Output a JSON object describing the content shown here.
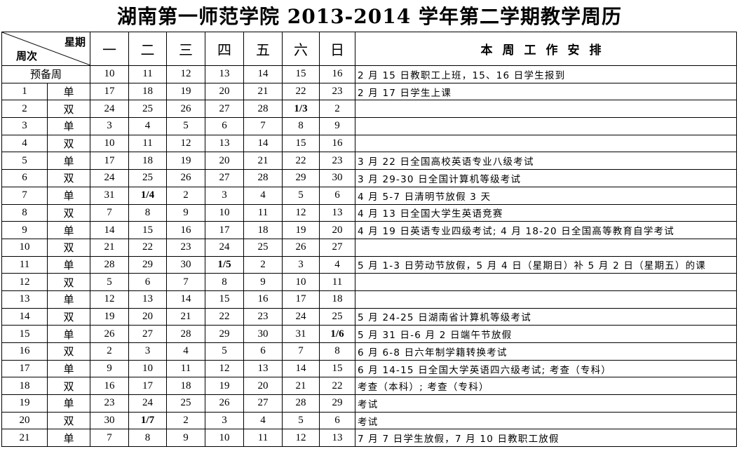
{
  "title": "湖南第一师范学院 2013-2014 学年第二学期教学周历",
  "header": {
    "weekday_label": "星期",
    "week_label": "周次",
    "days": [
      "一",
      "二",
      "三",
      "四",
      "五",
      "六",
      "日"
    ],
    "plan": "本周工作安排"
  },
  "rows": [
    {
      "week": "预备周",
      "parity": "",
      "dates": [
        "10",
        "11",
        "12",
        "13",
        "14",
        "15",
        "16"
      ],
      "note": "2 月 15 日教职工上班，15、16 日学生报到"
    },
    {
      "week": "1",
      "parity": "单",
      "dates": [
        "17",
        "18",
        "19",
        "20",
        "21",
        "22",
        "23"
      ],
      "note": "2 月 17 日学生上课"
    },
    {
      "week": "2",
      "parity": "双",
      "dates": [
        "24",
        "25",
        "26",
        "27",
        "28",
        "1/3",
        "2"
      ],
      "note": ""
    },
    {
      "week": "3",
      "parity": "单",
      "dates": [
        "3",
        "4",
        "5",
        "6",
        "7",
        "8",
        "9"
      ],
      "note": ""
    },
    {
      "week": "4",
      "parity": "双",
      "dates": [
        "10",
        "11",
        "12",
        "13",
        "14",
        "15",
        "16"
      ],
      "note": ""
    },
    {
      "week": "5",
      "parity": "单",
      "dates": [
        "17",
        "18",
        "19",
        "20",
        "21",
        "22",
        "23"
      ],
      "note": "3 月 22 日全国高校英语专业八级考试"
    },
    {
      "week": "6",
      "parity": "双",
      "dates": [
        "24",
        "25",
        "26",
        "27",
        "28",
        "29",
        "30"
      ],
      "note": "3 月 29-30 日全国计算机等级考试"
    },
    {
      "week": "7",
      "parity": "单",
      "dates": [
        "31",
        "1/4",
        "2",
        "3",
        "4",
        "5",
        "6"
      ],
      "note": "4 月 5-7 日清明节放假 3 天"
    },
    {
      "week": "8",
      "parity": "双",
      "dates": [
        "7",
        "8",
        "9",
        "10",
        "11",
        "12",
        "13"
      ],
      "note": "4 月 13 日全国大学生英语竞赛"
    },
    {
      "week": "9",
      "parity": "单",
      "dates": [
        "14",
        "15",
        "16",
        "17",
        "18",
        "19",
        "20"
      ],
      "note": "4 月 19 日英语专业四级考试; 4 月 18-20 日全国高等教育自学考试"
    },
    {
      "week": "10",
      "parity": "双",
      "dates": [
        "21",
        "22",
        "23",
        "24",
        "25",
        "26",
        "27"
      ],
      "note": ""
    },
    {
      "week": "11",
      "parity": "单",
      "dates": [
        "28",
        "29",
        "30",
        "1/5",
        "2",
        "3",
        "4"
      ],
      "note": "5 月 1-3 日劳动节放假，5 月 4 日（星期日）补 5 月 2 日（星期五）的课"
    },
    {
      "week": "12",
      "parity": "双",
      "dates": [
        "5",
        "6",
        "7",
        "8",
        "9",
        "10",
        "11"
      ],
      "note": ""
    },
    {
      "week": "13",
      "parity": "单",
      "dates": [
        "12",
        "13",
        "14",
        "15",
        "16",
        "17",
        "18"
      ],
      "note": ""
    },
    {
      "week": "14",
      "parity": "双",
      "dates": [
        "19",
        "20",
        "21",
        "22",
        "23",
        "24",
        "25"
      ],
      "note": "5 月 24-25 日湖南省计算机等级考试"
    },
    {
      "week": "15",
      "parity": "单",
      "dates": [
        "26",
        "27",
        "28",
        "29",
        "30",
        "31",
        "1/6"
      ],
      "note": "5 月 31 日-6 月 2 日端午节放假"
    },
    {
      "week": "16",
      "parity": "双",
      "dates": [
        "2",
        "3",
        "4",
        "5",
        "6",
        "7",
        "8"
      ],
      "note": "6 月 6-8 日六年制学籍转换考试"
    },
    {
      "week": "17",
      "parity": "单",
      "dates": [
        "9",
        "10",
        "11",
        "12",
        "13",
        "14",
        "15"
      ],
      "note": "6 月 14-15 日全国大学英语四六级考试; 考查（专科）"
    },
    {
      "week": "18",
      "parity": "双",
      "dates": [
        "16",
        "17",
        "18",
        "19",
        "20",
        "21",
        "22"
      ],
      "note": "考查（本科）; 考查（专科）"
    },
    {
      "week": "19",
      "parity": "单",
      "dates": [
        "23",
        "24",
        "25",
        "26",
        "27",
        "28",
        "29"
      ],
      "note": "考试"
    },
    {
      "week": "20",
      "parity": "双",
      "dates": [
        "30",
        "1/7",
        "2",
        "3",
        "4",
        "5",
        "6"
      ],
      "note": "考试"
    },
    {
      "week": "21",
      "parity": "单",
      "dates": [
        "7",
        "8",
        "9",
        "10",
        "11",
        "12",
        "13"
      ],
      "note": "7 月 7 日学生放假，7 月 10 日教职工放假"
    }
  ]
}
